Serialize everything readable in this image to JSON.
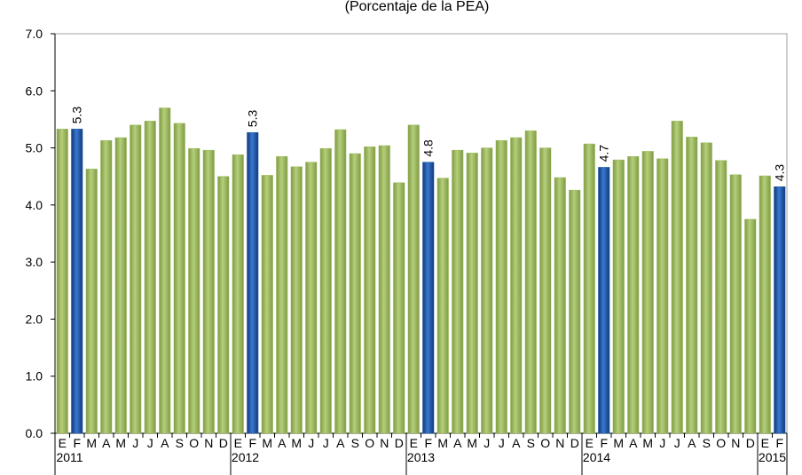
{
  "chart_data": {
    "type": "bar",
    "title": "(Porcentaje de la PEA)",
    "categories": [
      "E",
      "F",
      "M",
      "A",
      "M",
      "J",
      "J",
      "A",
      "S",
      "O",
      "N",
      "D",
      "E",
      "F",
      "M",
      "A",
      "M",
      "J",
      "J",
      "A",
      "S",
      "O",
      "N",
      "D",
      "E",
      "F",
      "M",
      "A",
      "M",
      "J",
      "J",
      "A",
      "S",
      "O",
      "N",
      "D",
      "E",
      "F",
      "M",
      "A",
      "M",
      "J",
      "J",
      "A",
      "S",
      "O",
      "N",
      "D",
      "E",
      "F"
    ],
    "years": [
      "2011",
      "2012",
      "2013",
      "2014",
      "2015"
    ],
    "values": [
      5.33,
      5.33,
      4.63,
      5.13,
      5.18,
      5.4,
      5.47,
      5.7,
      5.43,
      4.99,
      4.96,
      4.5,
      4.88,
      5.27,
      4.52,
      4.85,
      4.67,
      4.75,
      4.99,
      5.32,
      4.9,
      5.02,
      5.04,
      4.39,
      5.4,
      4.75,
      4.47,
      4.96,
      4.91,
      5.0,
      5.13,
      5.18,
      5.3,
      5.0,
      4.48,
      4.26,
      5.07,
      4.66,
      4.79,
      4.85,
      4.94,
      4.81,
      5.47,
      5.19,
      5.09,
      4.78,
      4.53,
      3.75,
      4.51,
      4.32
    ],
    "value_labels": [
      null,
      "5.3",
      null,
      null,
      null,
      null,
      null,
      null,
      null,
      null,
      null,
      null,
      null,
      "5.3",
      null,
      null,
      null,
      null,
      null,
      null,
      null,
      null,
      null,
      null,
      null,
      "4.8",
      null,
      null,
      null,
      null,
      null,
      null,
      null,
      null,
      null,
      null,
      null,
      "4.7",
      null,
      null,
      null,
      null,
      null,
      null,
      null,
      null,
      null,
      null,
      null,
      "4.3"
    ],
    "color": "#9bbb59",
    "highlight_color": "#1f5aa6",
    "ylim": [
      0,
      7
    ],
    "yticks": [
      {
        "value": 0,
        "label": "0.0"
      },
      {
        "value": 1,
        "label": "1.0"
      },
      {
        "value": 2,
        "label": "2.0"
      },
      {
        "value": 3,
        "label": "3.0"
      },
      {
        "value": 4,
        "label": "4.0"
      },
      {
        "value": 5,
        "label": "5.0"
      },
      {
        "value": 6,
        "label": "6.0"
      },
      {
        "value": 7,
        "label": "7.0"
      }
    ],
    "grid": false
  }
}
